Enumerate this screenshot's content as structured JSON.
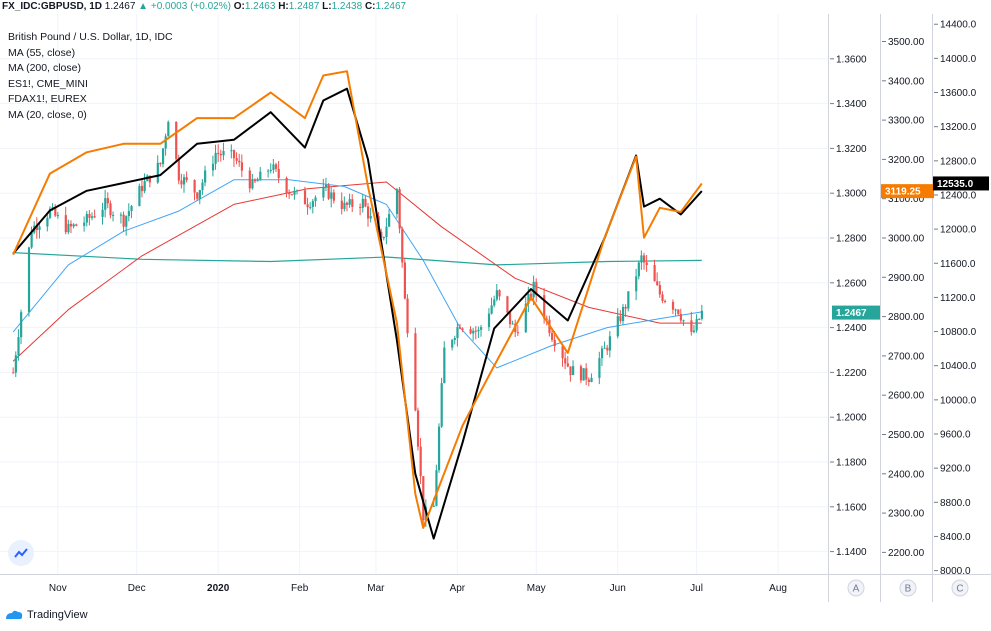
{
  "header": {
    "symbol": "FX_IDC:GBPUSD, 1D",
    "last": "1.2467",
    "arrow": "▲",
    "change": "+0.0003 (+0.02%)",
    "o_label": "O:",
    "o": "1.2463",
    "h_label": "H:",
    "h": "1.2487",
    "l_label": "L:",
    "l": "1.2438",
    "c_label": "C:",
    "c": "1.2467"
  },
  "legend": [
    "British Pound / U.S. Dollar, 1D, IDC",
    "MA (55, close)",
    "MA (200, close)",
    "ES1!, CME_MINI",
    "FDAX1!, EUREX",
    "MA (20, close, 0)"
  ],
  "footer": {
    "brand": "TradingView"
  },
  "colors": {
    "up": "#26a69a",
    "down": "#ef5350",
    "es": "#000000",
    "fdax": "#f57c00",
    "ma55": "#42a5f5",
    "ma200": "#e53935",
    "ma20": "#26a69a"
  },
  "chart_data": {
    "type": "candlestick",
    "title": "British Pound / U.S. Dollar, 1D, IDC",
    "x_ticks": [
      "Nov",
      "Dec",
      "2020",
      "Feb",
      "Mar",
      "Apr",
      "May",
      "Jun",
      "Jul",
      "Aug"
    ],
    "axes": {
      "gbpusd": {
        "ylim": [
          1.13,
          1.38
        ],
        "ticks": [
          "1.3600",
          "1.3400",
          "1.3200",
          "1.3000",
          "1.2800",
          "1.2600",
          "1.2400",
          "1.2200",
          "1.2000",
          "1.1800",
          "1.1600",
          "1.1400"
        ],
        "last_label": "1.2467"
      },
      "es": {
        "ylim": [
          2145,
          3570
        ],
        "ticks": [
          "3500.00",
          "3400.00",
          "3300.00",
          "3200.00",
          "3100.00",
          "3000.00",
          "2900.00",
          "2800.00",
          "2700.00",
          "2600.00",
          "2500.00",
          "2400.00",
          "2300.00",
          "2200.00"
        ],
        "last_label": "3119.25"
      },
      "fdax": {
        "ylim": [
          7960,
          14520
        ],
        "ticks": [
          "14400.0",
          "14000.0",
          "13600.0",
          "13200.0",
          "12800.0",
          "12400.0",
          "12000.0",
          "11600.0",
          "11200.0",
          "10800.0",
          "10400.0",
          "10000.0",
          "9600.0",
          "9200.0",
          "8800.0",
          "8400.0",
          "8000.0"
        ],
        "last_label": "12535.0"
      }
    },
    "axis_buttons": [
      "A",
      "B",
      "C"
    ],
    "series": [
      {
        "name": "GBPUSD close",
        "kind": "candles",
        "dates": [
          "2019-10-15",
          "2019-10-22",
          "2019-10-29",
          "2019-11-05",
          "2019-11-12",
          "2019-11-19",
          "2019-11-26",
          "2019-12-03",
          "2019-12-10",
          "2019-12-13",
          "2019-12-17",
          "2019-12-24",
          "2019-12-31",
          "2020-01-07",
          "2020-01-14",
          "2020-01-21",
          "2020-01-28",
          "2020-02-04",
          "2020-02-11",
          "2020-02-18",
          "2020-02-25",
          "2020-03-03",
          "2020-03-09",
          "2020-03-12",
          "2020-03-16",
          "2020-03-19",
          "2020-03-23",
          "2020-03-27",
          "2020-04-02",
          "2020-04-09",
          "2020-04-16",
          "2020-04-23",
          "2020-04-30",
          "2020-05-07",
          "2020-05-14",
          "2020-05-21",
          "2020-05-28",
          "2020-06-04",
          "2020-06-10",
          "2020-06-17",
          "2020-06-24",
          "2020-06-29",
          "2020-07-03"
        ],
        "values": [
          1.22,
          1.284,
          1.292,
          1.284,
          1.288,
          1.295,
          1.288,
          1.303,
          1.313,
          1.334,
          1.308,
          1.3,
          1.318,
          1.316,
          1.303,
          1.312,
          1.301,
          1.296,
          1.301,
          1.294,
          1.296,
          1.278,
          1.302,
          1.252,
          1.206,
          1.156,
          1.16,
          1.23,
          1.242,
          1.238,
          1.255,
          1.238,
          1.258,
          1.237,
          1.221,
          1.218,
          1.232,
          1.25,
          1.271,
          1.255,
          1.248,
          1.236,
          1.2467
        ]
      },
      {
        "name": "ES1!, CME_MINI",
        "kind": "line",
        "dates": [
          "2019-10-15",
          "2019-10-29",
          "2019-11-12",
          "2019-11-26",
          "2019-12-10",
          "2019-12-24",
          "2020-01-07",
          "2020-01-21",
          "2020-02-03",
          "2020-02-10",
          "2020-02-19",
          "2020-02-27",
          "2020-03-09",
          "2020-03-16",
          "2020-03-23",
          "2020-04-03",
          "2020-04-15",
          "2020-04-29",
          "2020-05-13",
          "2020-05-27",
          "2020-06-08",
          "2020-06-11",
          "2020-06-17",
          "2020-06-25",
          "2020-07-03"
        ],
        "values": [
          2960,
          3070,
          3120,
          3140,
          3160,
          3240,
          3250,
          3320,
          3230,
          3350,
          3380,
          3200,
          2740,
          2400,
          2235,
          2480,
          2770,
          2870,
          2790,
          3000,
          3210,
          3080,
          3100,
          3060,
          3119.25
        ]
      },
      {
        "name": "FDAX1!, EUREX",
        "kind": "line",
        "dates": [
          "2019-10-15",
          "2019-10-29",
          "2019-11-12",
          "2019-11-26",
          "2019-12-10",
          "2019-12-24",
          "2020-01-07",
          "2020-01-21",
          "2020-02-03",
          "2020-02-10",
          "2020-02-19",
          "2020-02-27",
          "2020-03-09",
          "2020-03-16",
          "2020-03-19",
          "2020-04-03",
          "2020-04-15",
          "2020-04-29",
          "2020-05-13",
          "2020-05-27",
          "2020-06-08",
          "2020-06-11",
          "2020-06-17",
          "2020-06-25",
          "2020-07-03"
        ],
        "values": [
          11700,
          12650,
          12900,
          13000,
          13000,
          13300,
          13300,
          13600,
          13300,
          13800,
          13850,
          12500,
          10900,
          8900,
          8500,
          9700,
          10400,
          11200,
          10550,
          11900,
          12850,
          11900,
          12250,
          12200,
          12535
        ]
      },
      {
        "name": "MA (55, close)",
        "kind": "line",
        "dates": [
          "2019-10-15",
          "2019-11-05",
          "2019-11-26",
          "2019-12-17",
          "2020-01-07",
          "2020-01-28",
          "2020-02-18",
          "2020-03-05",
          "2020-03-19",
          "2020-04-02",
          "2020-04-16",
          "2020-05-07",
          "2020-05-28",
          "2020-06-17",
          "2020-07-03"
        ],
        "values": [
          1.238,
          1.268,
          1.283,
          1.292,
          1.306,
          1.306,
          1.303,
          1.295,
          1.27,
          1.24,
          1.222,
          1.232,
          1.24,
          1.244,
          1.247
        ]
      },
      {
        "name": "MA (200, close)",
        "kind": "line",
        "dates": [
          "2019-10-15",
          "2019-11-05",
          "2019-12-03",
          "2020-01-07",
          "2020-02-04",
          "2020-03-05",
          "2020-03-26",
          "2020-04-23",
          "2020-05-21",
          "2020-06-17",
          "2020-07-03"
        ],
        "values": [
          1.225,
          1.248,
          1.272,
          1.295,
          1.302,
          1.305,
          1.285,
          1.262,
          1.249,
          1.242,
          1.242
        ]
      },
      {
        "name": "MA (20, close, 0)",
        "kind": "line",
        "dates": [
          "2019-10-15",
          "2019-12-03",
          "2020-01-21",
          "2020-03-05",
          "2020-04-16",
          "2020-05-28",
          "2020-07-03"
        ],
        "values": [
          1.2735,
          1.2705,
          1.2695,
          1.2715,
          1.268,
          1.2695,
          1.27
        ]
      }
    ]
  }
}
